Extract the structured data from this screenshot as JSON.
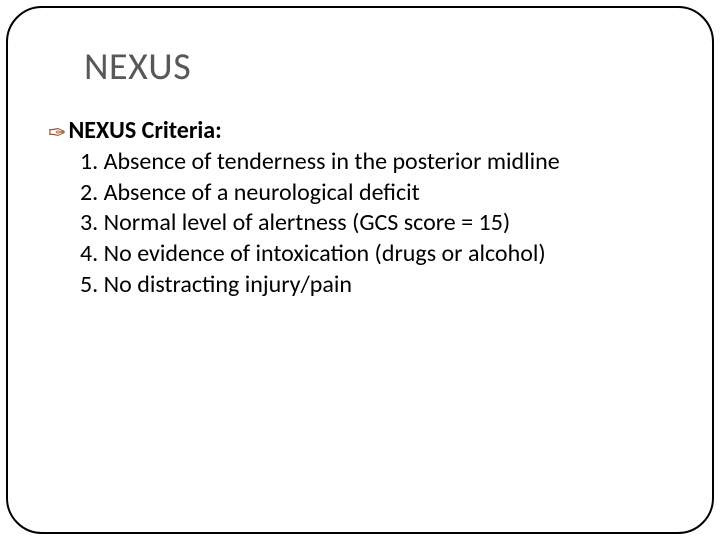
{
  "title": "NEXUS",
  "heading": "NEXUS Criteria:",
  "items": [
    "1. Absence of tenderness in the posterior midline",
    "2. Absence of a neurological deficit",
    "3. Normal level of alertness (GCS score = 15)",
    "4. No evidence of intoxication (drugs or alcohol)",
    "5. No distracting injury/pain"
  ],
  "bullet_glyph": "✑",
  "colors": {
    "title": "#585858",
    "bullet": "#9a4a2a",
    "text": "#000000",
    "frame": "#000000",
    "page_number": "#8a8a8a"
  },
  "typography": {
    "title_fontsize": 38,
    "body_fontsize": 24,
    "heading_weight": 700
  }
}
